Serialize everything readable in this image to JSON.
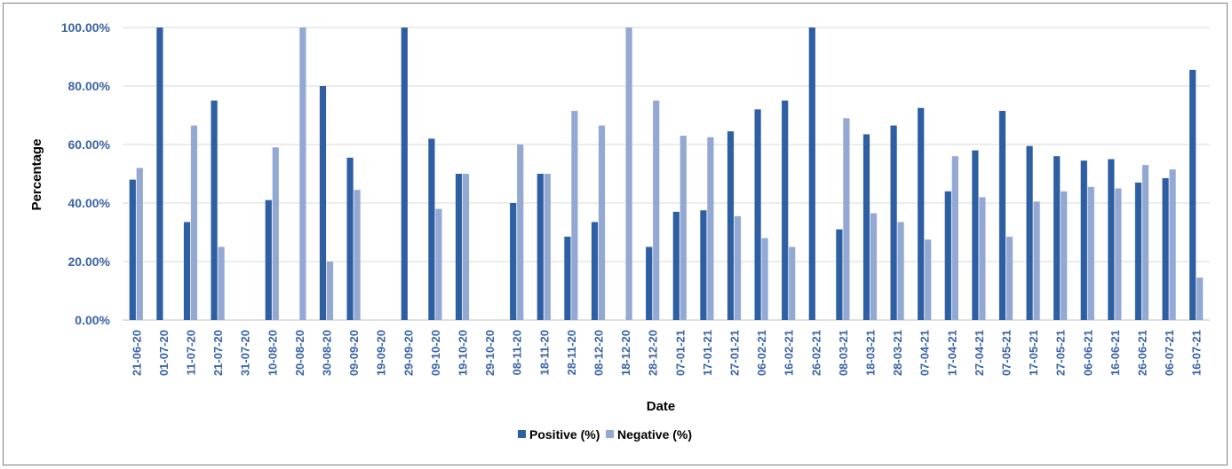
{
  "chart_data": {
    "type": "bar",
    "title": "",
    "xlabel": "Date",
    "ylabel": "Percentage",
    "ylim": [
      0,
      100
    ],
    "yticks": [
      "0.00%",
      "20.00%",
      "40.00%",
      "60.00%",
      "80.00%",
      "100.00%"
    ],
    "grid": true,
    "legend_position": "bottom",
    "categories": [
      "21-06-20",
      "01-07-20",
      "11-07-20",
      "21-07-20",
      "31-07-20",
      "10-08-20",
      "20-08-20",
      "30-08-20",
      "09-09-20",
      "19-09-20",
      "29-09-20",
      "09-10-20",
      "19-10-20",
      "29-10-20",
      "08-11-20",
      "18-11-20",
      "28-11-20",
      "08-12-20",
      "18-12-20",
      "28-12-20",
      "07-01-21",
      "17-01-21",
      "27-01-21",
      "06-02-21",
      "16-02-21",
      "26-02-21",
      "08-03-21",
      "18-03-21",
      "28-03-21",
      "07-04-21",
      "17-04-21",
      "27-04-21",
      "07-05-21",
      "17-05-21",
      "27-05-21",
      "06-06-21",
      "16-06-21",
      "26-06-21",
      "06-07-21",
      "16-07-21"
    ],
    "series": [
      {
        "name": "Positive (%)",
        "color": "#2e5fa3",
        "values": [
          48,
          100,
          33.5,
          75,
          0,
          41,
          0,
          80,
          55.5,
          0,
          100,
          62,
          50,
          0,
          40,
          50,
          28.5,
          33.5,
          0,
          25,
          37,
          37.5,
          64.5,
          72,
          75,
          100,
          31,
          63.5,
          66.5,
          72.5,
          44,
          58,
          71.5,
          59.5,
          56,
          54.5,
          55,
          47,
          48.5,
          85.5
        ]
      },
      {
        "name": "Negative (%)",
        "color": "#93a9d4",
        "values": [
          52,
          0,
          66.5,
          25,
          0,
          59,
          100,
          20,
          44.5,
          0,
          0,
          38,
          50,
          0,
          60,
          50,
          71.5,
          66.5,
          100,
          75,
          63,
          62.5,
          35.5,
          28,
          25,
          0,
          69,
          36.5,
          33.5,
          27.5,
          56,
          42,
          28.5,
          40.5,
          44,
          45.5,
          45,
          53,
          51.5,
          14.5
        ]
      }
    ]
  }
}
